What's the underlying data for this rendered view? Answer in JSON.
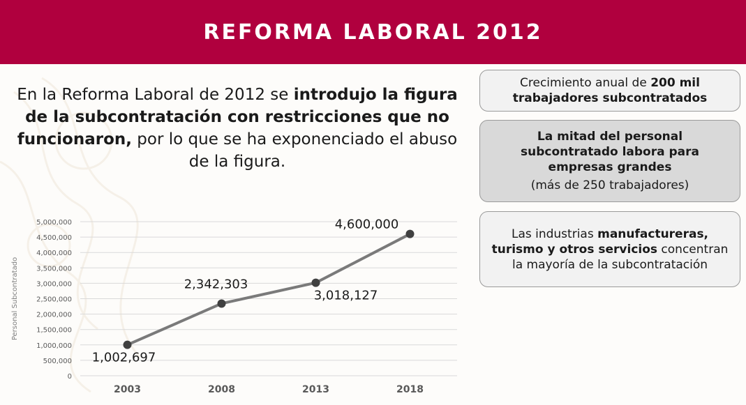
{
  "header": {
    "title": "REFORMA LABORAL 2012"
  },
  "intro": {
    "part1": "En la Reforma Laboral de 2012 se ",
    "bold": "introdujo la figura de la subcontratación con restricciones que no funcionaron,",
    "part2": " por lo que se ha exponenciado el abuso de la figura."
  },
  "cards": {
    "growth": {
      "text": "Crecimiento anual de ",
      "bold": "200 mil trabajadores subcontratados"
    },
    "half": {
      "bold": "La mitad del personal subcontratado labora para empresas grandes",
      "text": "(más de 250 trabajadores)"
    },
    "industries": {
      "text1": "Las industrias ",
      "bold": "manufactureras, turismo y otros servicios",
      "text2": " concentran la mayoría de la subcontratación"
    }
  },
  "colors": {
    "header": "#b0003e",
    "line": "#7a7a7a",
    "marker": "#404040"
  },
  "chart_data": {
    "type": "line",
    "categories": [
      "2003",
      "2008",
      "2013",
      "2018"
    ],
    "values": [
      1002697,
      2342303,
      3018127,
      4600000
    ],
    "value_labels": [
      "1,002,697",
      "2,342,303",
      "3,018,127",
      "4,600,000"
    ],
    "ylabel": "Personal Subcontratado",
    "ylim": [
      0,
      5000000
    ],
    "yticks": [
      "0",
      "500,000",
      "1,000,000",
      "1,500,000",
      "2,000,000",
      "2,500,000",
      "3,000,000",
      "3,500,000",
      "4,000,000",
      "4,500,000",
      "5,000,000"
    ],
    "grid": true
  }
}
